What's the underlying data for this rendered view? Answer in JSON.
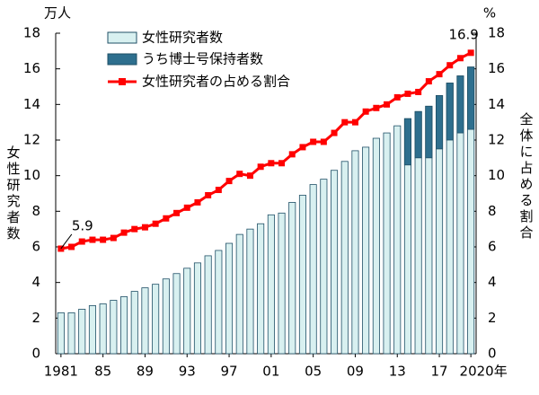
{
  "chart_data": {
    "type": "bar-line",
    "y_unit": "万人",
    "y2_unit": "%",
    "ylabel": "女性研究者数",
    "y2label": "全体に占める割合",
    "categories": [
      "1981",
      null,
      null,
      null,
      "85",
      null,
      null,
      null,
      "89",
      null,
      null,
      null,
      "93",
      null,
      null,
      null,
      "97",
      null,
      null,
      null,
      "01",
      null,
      null,
      null,
      "05",
      null,
      null,
      null,
      "09",
      null,
      null,
      null,
      "13",
      null,
      null,
      null,
      "17",
      null,
      null,
      "2020年"
    ],
    "series": [
      {
        "name": "女性研究者数",
        "color": "#d8f0f0",
        "stroke": "#1f4f66",
        "values": [
          2.3,
          2.3,
          2.5,
          2.7,
          2.8,
          3.0,
          3.2,
          3.5,
          3.7,
          3.9,
          4.2,
          4.5,
          4.8,
          5.1,
          5.5,
          5.8,
          6.2,
          6.7,
          7.0,
          7.3,
          7.8,
          7.9,
          8.5,
          8.9,
          9.5,
          9.8,
          10.3,
          10.8,
          11.4,
          11.6,
          12.1,
          12.4,
          12.8,
          13.2,
          13.6,
          13.9,
          14.5,
          15.2,
          15.6,
          16.1
        ]
      },
      {
        "name": "うち博士号保持者数",
        "color": "#2e6f8e",
        "values": [
          null,
          null,
          null,
          null,
          null,
          null,
          null,
          null,
          null,
          null,
          null,
          null,
          null,
          null,
          null,
          null,
          null,
          null,
          null,
          null,
          null,
          null,
          null,
          null,
          null,
          null,
          null,
          null,
          null,
          null,
          null,
          null,
          null,
          2.6,
          2.6,
          2.9,
          3.0,
          3.2,
          3.2,
          3.5
        ]
      },
      {
        "name": "女性研究者の占める割合",
        "color": "#ff0000",
        "axis": "y2",
        "values": [
          5.9,
          6.0,
          6.3,
          6.4,
          6.4,
          6.5,
          6.8,
          7.0,
          7.1,
          7.3,
          7.6,
          7.9,
          8.2,
          8.5,
          8.9,
          9.2,
          9.7,
          10.1,
          10.0,
          10.5,
          10.7,
          10.7,
          11.2,
          11.6,
          11.9,
          11.9,
          12.4,
          13.0,
          13.0,
          13.6,
          13.8,
          14.0,
          14.4,
          14.6,
          14.7,
          15.3,
          15.7,
          16.2,
          16.6,
          16.9
        ]
      }
    ],
    "labeled_points": [
      0,
      39
    ],
    "ylim": [
      0,
      18
    ],
    "yticks": [
      0,
      2,
      4,
      6,
      8,
      10,
      12,
      14,
      16,
      18
    ],
    "y2lim": [
      0,
      18
    ],
    "y2ticks": [
      0,
      2,
      4,
      6,
      8,
      10,
      12,
      14,
      16,
      18
    ]
  }
}
